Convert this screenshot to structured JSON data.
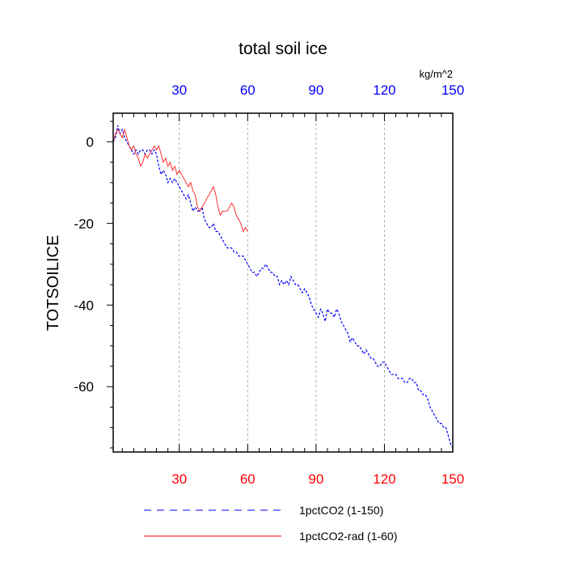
{
  "chart_data": {
    "type": "line",
    "title": "total soil ice",
    "ylabel": "TOTSOILICE",
    "units": "kg/m^2",
    "xlim": [
      1,
      150
    ],
    "ylim": [
      -76,
      7
    ],
    "x_ticks": [
      30,
      60,
      90,
      120,
      150
    ],
    "x_tick_labels": [
      "30",
      "60",
      "90",
      "120",
      "150"
    ],
    "y_ticks": [
      0,
      -20,
      -40,
      -60
    ],
    "y_tick_labels": [
      "0",
      "-20",
      "-40",
      "-60"
    ],
    "grid": "vertical dashed at major x ticks",
    "colors": {
      "top_tick_labels": "#0000ff",
      "bottom_tick_labels": "#ff0000",
      "series_1": "#0000ff",
      "series_2": "#ff0000"
    },
    "legend_position": "bottom",
    "series": [
      {
        "name": "1pctCO2 (1-150)",
        "style": "dashed",
        "color": "#0000ff",
        "x_start": 1,
        "values": [
          0,
          1,
          4,
          2,
          3,
          1,
          0,
          -1,
          -2,
          -3,
          -2,
          -3,
          -2,
          -2,
          -3,
          -2,
          -2,
          -3,
          -2,
          -3,
          -6,
          -8,
          -7,
          -8,
          -10,
          -9,
          -10,
          -9,
          -10,
          -11,
          -12,
          -13,
          -14,
          -13,
          -15,
          -17,
          -16,
          -17,
          -17,
          -16,
          -19,
          -20,
          -21,
          -21,
          -20,
          -22,
          -22,
          -23,
          -24,
          -25,
          -26,
          -26,
          -26,
          -27,
          -27,
          -28,
          -28,
          -28,
          -29,
          -30,
          -31,
          -32,
          -32,
          -33,
          -32,
          -31,
          -31,
          -30,
          -31,
          -32,
          -32,
          -33,
          -33,
          -35,
          -34,
          -35,
          -34,
          -35,
          -33,
          -34,
          -35,
          -35,
          -36,
          -37,
          -36,
          -37,
          -38,
          -40,
          -41,
          -42,
          -43,
          -41,
          -42,
          -44,
          -41,
          -42,
          -42,
          -43,
          -41,
          -42,
          -44,
          -45,
          -46,
          -47,
          -49,
          -48,
          -49,
          -50,
          -50,
          -51,
          -52,
          -51,
          -52,
          -53,
          -53,
          -54,
          -55,
          -55,
          -54,
          -54,
          -55,
          -56,
          -57,
          -57,
          -57,
          -58,
          -58,
          -58,
          -59,
          -59,
          -58,
          -58,
          -59,
          -59,
          -61,
          -61,
          -62,
          -62,
          -63,
          -65,
          -66,
          -67,
          -68,
          -69,
          -69,
          -70,
          -70,
          -72,
          -74,
          -75
        ]
      },
      {
        "name": "1pctCO2-rad (1-60)",
        "style": "solid",
        "color": "#ff0000",
        "x_start": 1,
        "values": [
          0,
          2,
          3,
          2,
          1,
          3,
          1,
          -1,
          -2,
          -1,
          -3,
          -4,
          -6,
          -5,
          -3,
          -4,
          -3,
          -2,
          -1,
          -2,
          -1,
          -3,
          -5,
          -4,
          -6,
          -5,
          -7,
          -6,
          -8,
          -7,
          -8,
          -9,
          -10,
          -11,
          -10,
          -12,
          -13,
          -16,
          -17,
          -16,
          -15,
          -14,
          -13,
          -12,
          -11,
          -13,
          -16,
          -18,
          -17,
          -17,
          -17,
          -16,
          -15,
          -16,
          -18,
          -19,
          -20,
          -22,
          -21,
          -22
        ]
      }
    ]
  }
}
